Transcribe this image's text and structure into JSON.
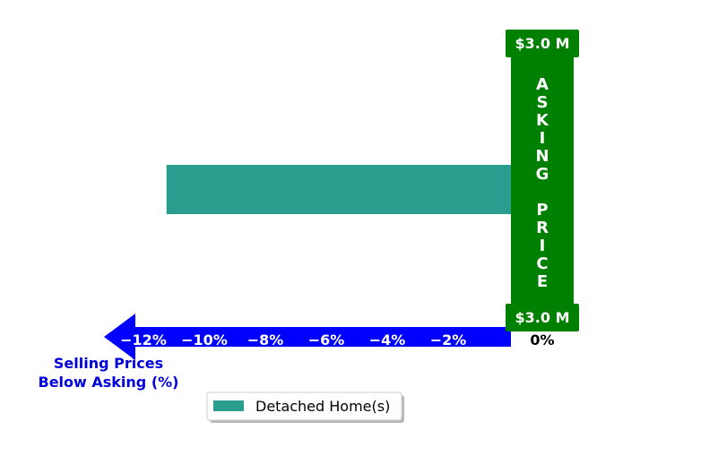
{
  "chart_data": {
    "type": "bar",
    "orientation": "horizontal",
    "categories": [
      ""
    ],
    "series": [
      {
        "name": "Detached Home(s)",
        "values": [
          -11.3
        ],
        "color": "#2a9d8f"
      }
    ],
    "xlim": [
      -13.2,
      0
    ],
    "ticks": [
      -12,
      -10,
      -8,
      -6,
      -4,
      -2
    ],
    "tick_labels": [
      "−12%",
      "−10%",
      "−8%",
      "−6%",
      "−4%",
      "−2%"
    ],
    "zero_label": "0%",
    "xlabel_lines": [
      "Selling Prices",
      "Below Asking (%)"
    ],
    "asking_price_top": "$3.0 M",
    "asking_price_bottom": "$3.0 M",
    "asking_label_words": [
      "ASKING",
      "PRICE"
    ],
    "legend_position": "bottom-center",
    "colors": {
      "axis_arrow": "#0000ff",
      "asking_bar": "#008000",
      "bar": "#2a9d8f",
      "xlabel": "#0000dd"
    }
  }
}
